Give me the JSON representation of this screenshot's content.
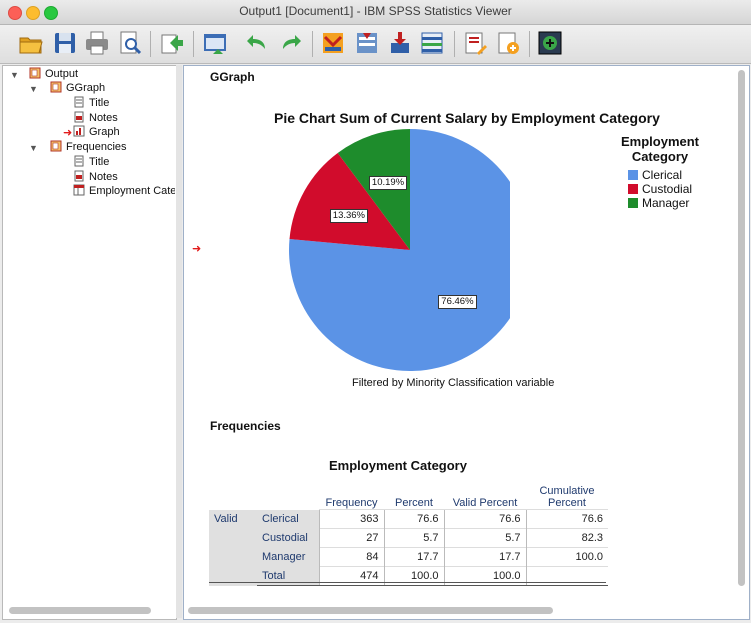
{
  "window": {
    "title": "Output1 [Document1] - IBM SPSS Statistics Viewer"
  },
  "toolbar": {
    "icons": [
      "open-icon",
      "save-icon",
      "print-icon",
      "print-preview-icon",
      "export-icon",
      "recall-dialog-icon",
      "undo-icon",
      "redo-icon",
      "goto-data-icon",
      "goto-case-icon",
      "goto-variable-icon",
      "variables-icon",
      "designate-window-icon",
      "edit-output-icon",
      "insert-icon"
    ]
  },
  "tree": {
    "root": "Output",
    "groups": [
      {
        "label": "GGraph",
        "items": [
          "Title",
          "Notes",
          "Graph"
        ]
      },
      {
        "label": "Frequencies",
        "items": [
          "Title",
          "Notes",
          "Employment Cate"
        ]
      }
    ]
  },
  "viewer": {
    "ggraph_heading": "GGraph",
    "frequencies_heading": "Frequencies",
    "footnote": "Filtered by Minority Classification variable"
  },
  "chart_data": {
    "type": "pie",
    "title": "Pie Chart Sum of Current Salary by Employment Category",
    "legend_title": "Employment Category",
    "legend_position": "right",
    "slices": [
      {
        "name": "Clerical",
        "value": 76.46,
        "label": "76.46%",
        "color": "#5b93e6"
      },
      {
        "name": "Custodial",
        "value": 13.36,
        "label": "13.36%",
        "color": "#d10c2c"
      },
      {
        "name": "Manager",
        "value": 10.19,
        "label": "10.19%",
        "color": "#1e8c2c"
      }
    ]
  },
  "freq_table": {
    "title": "Employment Category",
    "headers": [
      "Frequency",
      "Percent",
      "Valid Percent",
      "Cumulative Percent"
    ],
    "group_label": "Valid",
    "rows": [
      {
        "label": "Clerical",
        "frequency": "363",
        "percent": "76.6",
        "valid": "76.6",
        "cumulative": "76.6"
      },
      {
        "label": "Custodial",
        "frequency": "27",
        "percent": "5.7",
        "valid": "5.7",
        "cumulative": "82.3"
      },
      {
        "label": "Manager",
        "frequency": "84",
        "percent": "17.7",
        "valid": "17.7",
        "cumulative": "100.0"
      },
      {
        "label": "Total",
        "frequency": "474",
        "percent": "100.0",
        "valid": "100.0",
        "cumulative": ""
      }
    ]
  }
}
